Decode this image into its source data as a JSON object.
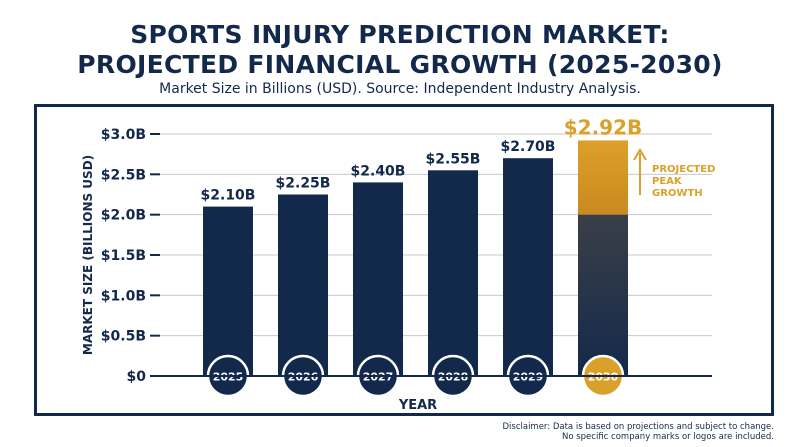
{
  "title_line1": "SPORTS INJURY PREDICTION MARKET:",
  "title_line2": "PROJECTED FINANCIAL GROWTH (2025-2030)",
  "subtitle": "Market Size in Billions (USD). Source: Independent Industry Analysis.",
  "disclaimer_line1": "Disclaimer: Data is based on projections and subject to change.",
  "disclaimer_line2": "No specific company marks or logos are included.",
  "annotation": [
    "PROJECTED",
    "PEAK",
    "GROWTH"
  ],
  "colors": {
    "navy": "#13294b",
    "gold": "#d9a12a",
    "text": "#13294b"
  },
  "chart_data": {
    "type": "bar",
    "categories": [
      "2025",
      "2026",
      "2027",
      "2028",
      "2029",
      "2030"
    ],
    "values": [
      2.1,
      2.25,
      2.4,
      2.55,
      2.7,
      2.92
    ],
    "data_labels": [
      "$2.10B",
      "$2.25B",
      "$2.40B",
      "$2.55B",
      "$2.70B",
      "$2.92B"
    ],
    "highlight_index": 5,
    "ylabel": "MARKET SIZE (BILLIONS USD)",
    "xlabel": "YEAR",
    "ylim": [
      0,
      3.0
    ],
    "yticks": [
      0,
      0.5,
      1.0,
      1.5,
      2.0,
      2.5,
      3.0
    ],
    "ytick_labels": [
      "$0",
      "$0.5B",
      "$1.0B",
      "$1.5B",
      "$2.0B",
      "$2.5B",
      "$3.0B"
    ],
    "grid": true,
    "legend": "none"
  }
}
